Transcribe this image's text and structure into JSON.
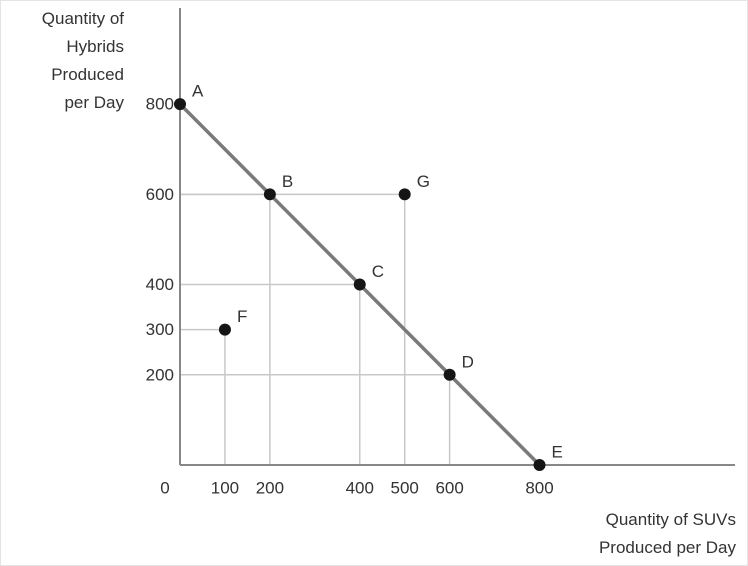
{
  "chart_data": {
    "type": "ppf",
    "xlabel": "Quantity of SUVs Produced per Day",
    "ylabel": "Quantity of Hybrids Produced per Day",
    "series": [
      {
        "type": "line",
        "color": "#7a7a7a",
        "point_color": "#151515",
        "x": [
          0,
          200,
          400,
          600,
          800
        ],
        "values": [
          800,
          600,
          400,
          200,
          0
        ],
        "point_labels": [
          "A",
          "B",
          "C",
          "D",
          "E"
        ]
      },
      {
        "type": "scatter",
        "point_color": "#151515",
        "x": [
          100,
          500
        ],
        "values": [
          300,
          600
        ],
        "point_labels": [
          "F",
          "G"
        ]
      }
    ],
    "xlim": [
      0,
      1235
    ],
    "ylim": [
      0,
      1013
    ],
    "xticks": [
      0,
      100,
      200,
      400,
      500,
      600,
      800
    ],
    "yticks": [
      200,
      300,
      400,
      600,
      800
    ],
    "guide_color": "#c8c8c8"
  }
}
